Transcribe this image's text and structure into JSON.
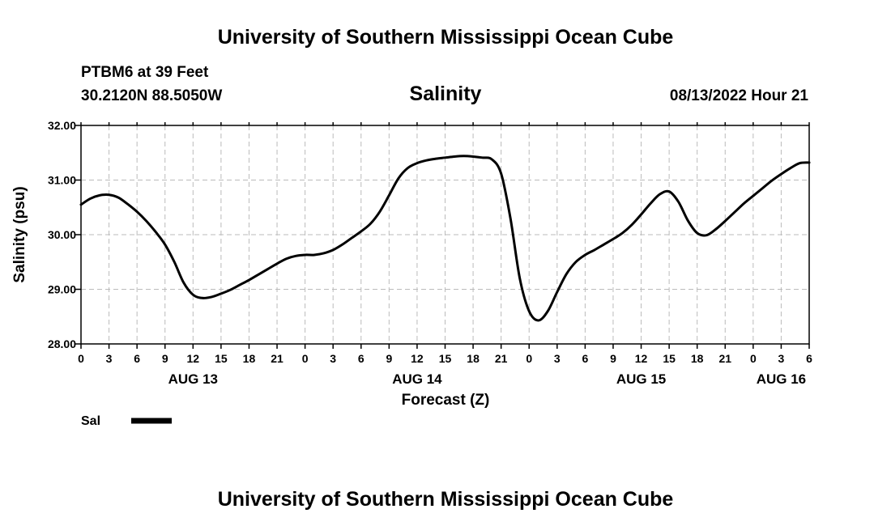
{
  "header": {
    "title": "University of Southern Mississippi Ocean Cube",
    "station": "PTBM6 at 39 Feet",
    "coords": "30.2120N  88.5050W",
    "datetime": "08/13/2022 Hour 21"
  },
  "footer": {
    "title": "University of Southern Mississippi Ocean Cube"
  },
  "colors": {
    "line": "#000000",
    "grid": "#bbbbbb",
    "background": "#ffffff"
  },
  "chart_data": {
    "type": "line",
    "title": "Salinity",
    "xlabel": "Forecast (Z)",
    "ylabel": "Salinity (psu)",
    "xlim": [
      0,
      78
    ],
    "ylim": [
      28.0,
      32.0
    ],
    "grid": true,
    "y_ticks": [
      "28.00",
      "29.00",
      "30.00",
      "31.00",
      "32.00"
    ],
    "x_ticks": [
      {
        "h": 0,
        "label": "0"
      },
      {
        "h": 3,
        "label": "3"
      },
      {
        "h": 6,
        "label": "6"
      },
      {
        "h": 9,
        "label": "9"
      },
      {
        "h": 12,
        "label": "12"
      },
      {
        "h": 15,
        "label": "15"
      },
      {
        "h": 18,
        "label": "18"
      },
      {
        "h": 21,
        "label": "21"
      },
      {
        "h": 24,
        "label": "0"
      },
      {
        "h": 27,
        "label": "3"
      },
      {
        "h": 30,
        "label": "6"
      },
      {
        "h": 33,
        "label": "9"
      },
      {
        "h": 36,
        "label": "12"
      },
      {
        "h": 39,
        "label": "15"
      },
      {
        "h": 42,
        "label": "18"
      },
      {
        "h": 45,
        "label": "21"
      },
      {
        "h": 48,
        "label": "0"
      },
      {
        "h": 51,
        "label": "3"
      },
      {
        "h": 54,
        "label": "6"
      },
      {
        "h": 57,
        "label": "9"
      },
      {
        "h": 60,
        "label": "12"
      },
      {
        "h": 63,
        "label": "15"
      },
      {
        "h": 66,
        "label": "18"
      },
      {
        "h": 69,
        "label": "21"
      },
      {
        "h": 72,
        "label": "0"
      },
      {
        "h": 75,
        "label": "3"
      },
      {
        "h": 78,
        "label": "6"
      }
    ],
    "date_labels": [
      {
        "h": 12,
        "label": "AUG 13"
      },
      {
        "h": 36,
        "label": "AUG 14"
      },
      {
        "h": 60,
        "label": "AUG 15"
      },
      {
        "h": 75,
        "label": "AUG 16"
      }
    ],
    "legend": {
      "position": "bottom-left",
      "label": "Sal"
    },
    "series": [
      {
        "name": "Sal",
        "x": [
          0,
          1,
          2,
          3,
          4,
          5,
          6,
          7,
          8,
          9,
          10,
          11,
          12,
          13,
          14,
          15,
          16,
          17,
          18,
          19,
          20,
          21,
          22,
          23,
          24,
          25,
          26,
          27,
          28,
          29,
          30,
          31,
          32,
          33,
          34,
          35,
          36,
          37,
          38,
          39,
          40,
          41,
          42,
          43,
          44,
          45,
          46,
          47,
          48,
          49,
          50,
          51,
          52,
          53,
          54,
          55,
          56,
          57,
          58,
          59,
          60,
          61,
          62,
          63,
          64,
          65,
          66,
          67,
          68,
          69,
          70,
          71,
          72,
          73,
          74,
          75,
          76,
          77,
          78
        ],
        "values": [
          30.55,
          30.66,
          30.72,
          30.73,
          30.68,
          30.56,
          30.42,
          30.25,
          30.05,
          29.82,
          29.5,
          29.12,
          28.9,
          28.84,
          28.86,
          28.92,
          28.99,
          29.08,
          29.17,
          29.27,
          29.37,
          29.47,
          29.56,
          29.61,
          29.63,
          29.63,
          29.66,
          29.72,
          29.82,
          29.94,
          30.06,
          30.2,
          30.42,
          30.72,
          31.03,
          31.22,
          31.31,
          31.36,
          31.39,
          31.41,
          31.43,
          31.44,
          31.43,
          31.41,
          31.38,
          31.12,
          30.3,
          29.2,
          28.6,
          28.43,
          28.6,
          28.95,
          29.28,
          29.5,
          29.63,
          29.72,
          29.82,
          29.92,
          30.03,
          30.18,
          30.37,
          30.57,
          30.74,
          30.79,
          30.6,
          30.26,
          30.03,
          29.99,
          30.1,
          30.25,
          30.41,
          30.57,
          30.71,
          30.85,
          30.99,
          31.11,
          31.22,
          31.31,
          31.32
        ]
      }
    ]
  }
}
